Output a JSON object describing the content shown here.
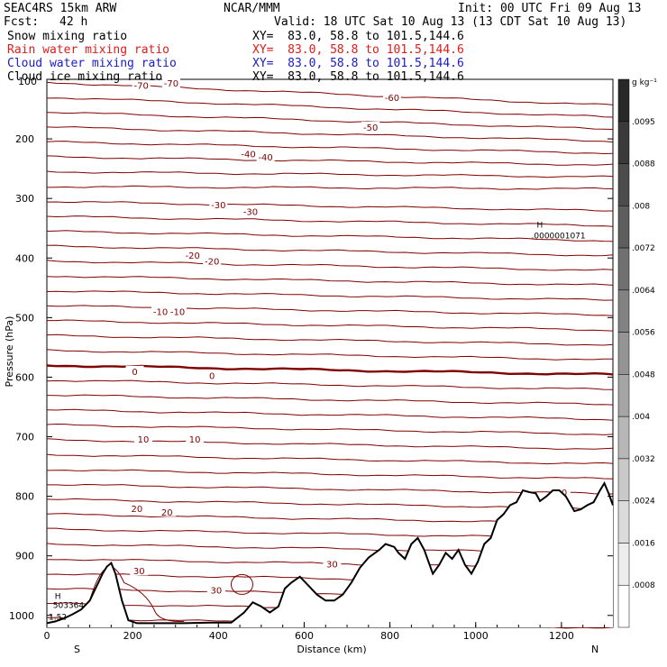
{
  "header": {
    "model": "SEAC4RS 15km ARW",
    "center": "NCAR/MMM",
    "init": "Init: 00 UTC Fri 09 Aug 13",
    "fcst_label": "Fcst:",
    "fcst_value": "42 h",
    "valid": "Valid: 18 UTC Sat 10 Aug 13 (13 CDT Sat 10 Aug 13)",
    "fields": [
      {
        "name": "Snow mixing ratio",
        "xy": "XY=  83.0, 58.8 to 101.5,144.6",
        "color": "#000000"
      },
      {
        "name": "Rain water mixing ratio",
        "xy": "XY=  83.0, 58.8 to 101.5,144.6",
        "color": "#e11a1a"
      },
      {
        "name": "Cloud water mixing ratio",
        "xy": "XY=  83.0, 58.8 to 101.5,144.6",
        "color": "#1a1ac8"
      },
      {
        "name": "Cloud ice mixing ratio",
        "xy": "XY=  83.0, 58.8 to 101.5,144.6",
        "color": "#000000"
      }
    ]
  },
  "colors": {
    "contour": "#800000",
    "terrain": "#000000",
    "marker": "#1a1ac8"
  },
  "chart_data": {
    "type": "cross-section",
    "xlabel": "Distance (km)",
    "ylabel": "Pressure (hPa)",
    "xlim": [
      0,
      1320
    ],
    "ylim": [
      100,
      1020
    ],
    "x_ticks": [
      "0",
      "200",
      "400",
      "600",
      "800",
      "1000",
      "1200"
    ],
    "y_ticks": [
      "200",
      "300",
      "400",
      "500",
      "600",
      "700",
      "800",
      "900",
      "1000"
    ],
    "y_top_label": "100",
    "endpoint_left": "S",
    "endpoint_right": "N",
    "colorbar": {
      "unit": "g kg⁻¹",
      "labels": [
        ".0095",
        ".0088",
        ".008",
        ".0072",
        ".0064",
        ".0056",
        ".0048",
        ".004",
        ".0032",
        ".0024",
        ".0016",
        ".0008"
      ]
    },
    "temperature_labels": [
      {
        "text": "-70",
        "x": 220,
        "p": 110
      },
      {
        "text": "-70",
        "x": 290,
        "p": 106
      },
      {
        "text": "-60",
        "x": 805,
        "p": 130
      },
      {
        "text": "-50",
        "x": 755,
        "p": 180
      },
      {
        "text": "-40",
        "x": 470,
        "p": 225
      },
      {
        "text": "-40",
        "x": 510,
        "p": 230
      },
      {
        "text": "-30",
        "x": 400,
        "p": 310
      },
      {
        "text": "-30",
        "x": 475,
        "p": 322
      },
      {
        "text": "-20",
        "x": 340,
        "p": 395
      },
      {
        "text": "-20",
        "x": 385,
        "p": 405
      },
      {
        "text": "-10",
        "x": 265,
        "p": 490
      },
      {
        "text": "-10",
        "x": 305,
        "p": 490
      },
      {
        "text": "0",
        "x": 205,
        "p": 590
      },
      {
        "text": "0",
        "x": 385,
        "p": 597
      },
      {
        "text": "10",
        "x": 225,
        "p": 704
      },
      {
        "text": "10",
        "x": 345,
        "p": 704
      },
      {
        "text": "20",
        "x": 210,
        "p": 820
      },
      {
        "text": "20",
        "x": 280,
        "p": 826
      },
      {
        "text": "20",
        "x": 1200,
        "p": 793
      },
      {
        "text": "30",
        "x": 215,
        "p": 925
      },
      {
        "text": "30",
        "x": 395,
        "p": 957
      },
      {
        "text": "30",
        "x": 665,
        "p": 913
      }
    ],
    "high_marker": {
      "letter": "H",
      "value": ".0000001071",
      "x": 1155,
      "p": 355
    },
    "low_markers": [
      {
        "letter": "H",
        "value": "503364",
        "x": 10,
        "p": 975
      },
      {
        "letter": "",
        "value": "1.52",
        "x": 0,
        "p": 995
      }
    ],
    "terrain_pressure": [
      [
        0,
        1013
      ],
      [
        20,
        1010
      ],
      [
        40,
        1005
      ],
      [
        60,
        998
      ],
      [
        80,
        990
      ],
      [
        100,
        975
      ],
      [
        110,
        960
      ],
      [
        120,
        945
      ],
      [
        130,
        930
      ],
      [
        140,
        918
      ],
      [
        150,
        912
      ],
      [
        160,
        930
      ],
      [
        175,
        975
      ],
      [
        190,
        1008
      ],
      [
        210,
        1013
      ],
      [
        260,
        1013
      ],
      [
        320,
        1013
      ],
      [
        380,
        1012
      ],
      [
        430,
        1012
      ],
      [
        460,
        995
      ],
      [
        480,
        978
      ],
      [
        500,
        985
      ],
      [
        520,
        995
      ],
      [
        540,
        985
      ],
      [
        555,
        955
      ],
      [
        570,
        945
      ],
      [
        590,
        935
      ],
      [
        610,
        950
      ],
      [
        630,
        965
      ],
      [
        650,
        975
      ],
      [
        670,
        975
      ],
      [
        690,
        965
      ],
      [
        710,
        945
      ],
      [
        730,
        920
      ],
      [
        750,
        903
      ],
      [
        775,
        890
      ],
      [
        790,
        880
      ],
      [
        810,
        885
      ],
      [
        820,
        895
      ],
      [
        835,
        905
      ],
      [
        850,
        880
      ],
      [
        865,
        870
      ],
      [
        880,
        890
      ],
      [
        900,
        930
      ],
      [
        915,
        915
      ],
      [
        930,
        895
      ],
      [
        945,
        905
      ],
      [
        960,
        890
      ],
      [
        975,
        915
      ],
      [
        990,
        930
      ],
      [
        1005,
        910
      ],
      [
        1020,
        880
      ],
      [
        1035,
        870
      ],
      [
        1050,
        840
      ],
      [
        1065,
        830
      ],
      [
        1080,
        815
      ],
      [
        1095,
        810
      ],
      [
        1110,
        790
      ],
      [
        1125,
        793
      ],
      [
        1140,
        795
      ],
      [
        1150,
        808
      ],
      [
        1165,
        800
      ],
      [
        1180,
        790
      ],
      [
        1195,
        790
      ],
      [
        1210,
        800
      ],
      [
        1230,
        825
      ],
      [
        1245,
        822
      ],
      [
        1260,
        815
      ],
      [
        1275,
        810
      ],
      [
        1290,
        790
      ],
      [
        1300,
        778
      ],
      [
        1310,
        795
      ],
      [
        1320,
        815
      ]
    ]
  }
}
